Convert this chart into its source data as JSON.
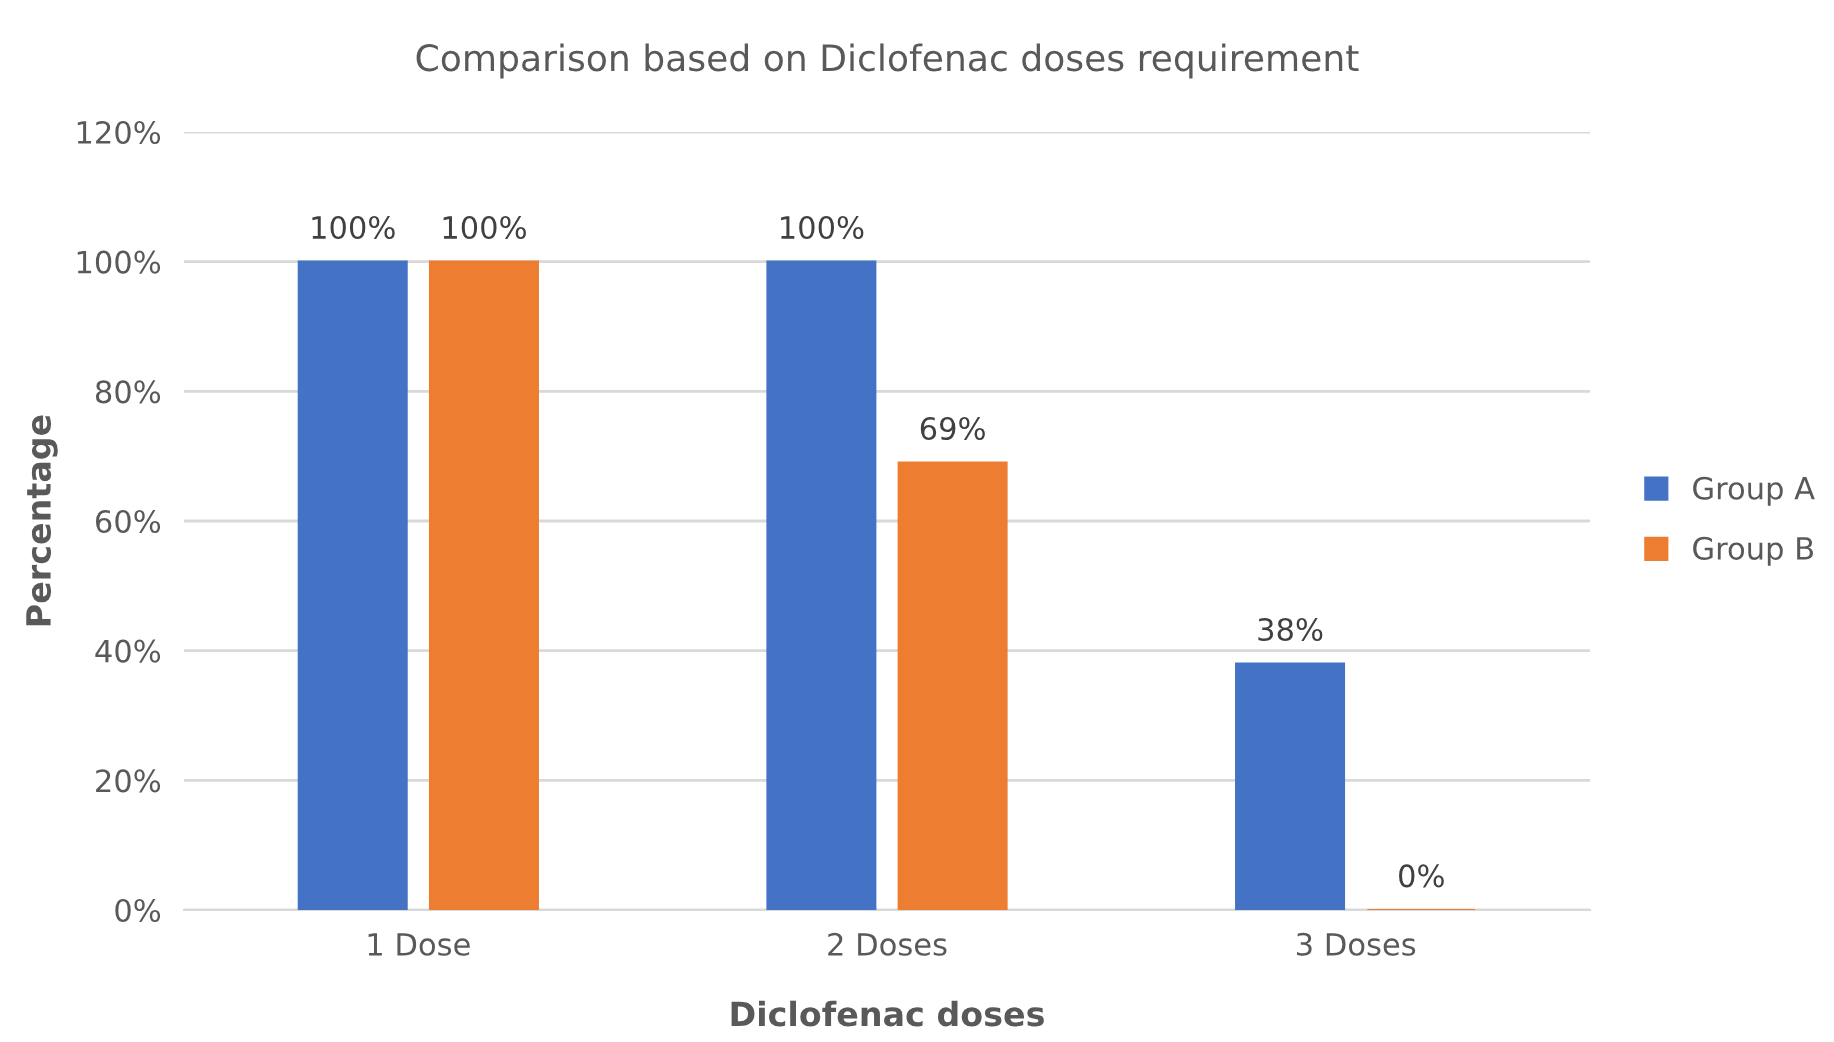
{
  "chart_data": {
    "type": "bar",
    "title": "Comparison based on Diclofenac doses requirement",
    "xlabel": "Diclofenac doses",
    "ylabel": "Percentage",
    "categories": [
      "1 Dose",
      "2 Doses",
      "3 Doses"
    ],
    "series": [
      {
        "name": "Group A",
        "color": "#4472c4",
        "values": [
          100,
          100,
          38
        ],
        "value_labels": [
          "100%",
          "100%",
          "38%"
        ]
      },
      {
        "name": "Group B",
        "color": "#ed7d31",
        "values": [
          100,
          69,
          0
        ],
        "value_labels": [
          "100%",
          "69%",
          "0%"
        ]
      }
    ],
    "ylim": [
      0,
      120
    ],
    "yticks": [
      {
        "value": 0,
        "label": "0%"
      },
      {
        "value": 20,
        "label": "20%"
      },
      {
        "value": 40,
        "label": "40%"
      },
      {
        "value": 60,
        "label": "60%"
      },
      {
        "value": 80,
        "label": "80%"
      },
      {
        "value": 100,
        "label": "100%"
      },
      {
        "value": 120,
        "label": "120%"
      }
    ],
    "grid": "y",
    "legend": "right"
  }
}
